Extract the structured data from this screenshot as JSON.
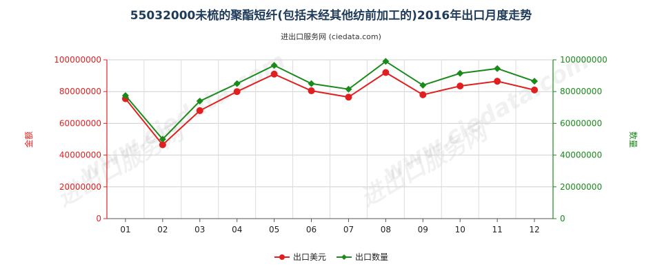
{
  "chart_data": {
    "type": "line",
    "title": "55032000未梳的聚酯短纤(包括未经其他纺前加工的)2016年出口月度走势",
    "subtitle": "进出口服务网 (ciedata.com)",
    "categories": [
      "01",
      "02",
      "03",
      "04",
      "05",
      "06",
      "07",
      "08",
      "09",
      "10",
      "11",
      "12"
    ],
    "y_left": {
      "label": "金额",
      "ylim": [
        0,
        100000000
      ],
      "ticks": [
        "0",
        "20000000",
        "40000000",
        "60000000",
        "80000000",
        "100000000"
      ],
      "color": "#e02020"
    },
    "y_right": {
      "label": "数量",
      "ylim": [
        0,
        100000000
      ],
      "ticks": [
        "0",
        "20000000",
        "40000000",
        "60000000",
        "80000000",
        "100000000"
      ],
      "color": "#1a8a1a"
    },
    "grid": true,
    "legend_position": "bottom",
    "series": [
      {
        "name": "出口美元",
        "axis": "left",
        "color": "#e02020",
        "marker": "circle",
        "values": [
          75500000,
          46500000,
          68000000,
          80000000,
          91000000,
          80500000,
          76500000,
          92000000,
          78000000,
          83500000,
          86500000,
          81000000
        ]
      },
      {
        "name": "出口数量",
        "axis": "right",
        "color": "#1a8a1a",
        "marker": "diamond",
        "values": [
          77500000,
          50000000,
          74000000,
          85000000,
          96500000,
          85000000,
          81500000,
          99000000,
          84000000,
          91500000,
          94500000,
          86500000
        ]
      }
    ],
    "watermarks": [
      "进出口服务网",
      "www.ciedata.com"
    ]
  }
}
